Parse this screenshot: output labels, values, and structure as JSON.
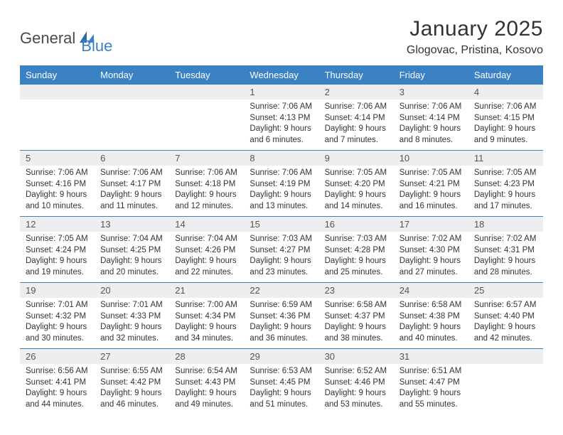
{
  "logo": {
    "part1": "General",
    "part2": "Blue"
  },
  "title": "January 2025",
  "location": "Glogovac, Pristina, Kosovo",
  "colors": {
    "header_bg": "#3b82c4",
    "header_text": "#ffffff",
    "daynum_bg": "#eceef0",
    "row_divider": "#3b82c4",
    "body_text": "#333333",
    "logo_gray": "#4a4a4a",
    "logo_blue": "#3b82c4"
  },
  "weekdays": [
    "Sunday",
    "Monday",
    "Tuesday",
    "Wednesday",
    "Thursday",
    "Friday",
    "Saturday"
  ],
  "weeks": [
    [
      null,
      null,
      null,
      {
        "n": "1",
        "sr": "7:06 AM",
        "ss": "4:13 PM",
        "dl": "9 hours and 6 minutes."
      },
      {
        "n": "2",
        "sr": "7:06 AM",
        "ss": "4:14 PM",
        "dl": "9 hours and 7 minutes."
      },
      {
        "n": "3",
        "sr": "7:06 AM",
        "ss": "4:14 PM",
        "dl": "9 hours and 8 minutes."
      },
      {
        "n": "4",
        "sr": "7:06 AM",
        "ss": "4:15 PM",
        "dl": "9 hours and 9 minutes."
      }
    ],
    [
      {
        "n": "5",
        "sr": "7:06 AM",
        "ss": "4:16 PM",
        "dl": "9 hours and 10 minutes."
      },
      {
        "n": "6",
        "sr": "7:06 AM",
        "ss": "4:17 PM",
        "dl": "9 hours and 11 minutes."
      },
      {
        "n": "7",
        "sr": "7:06 AM",
        "ss": "4:18 PM",
        "dl": "9 hours and 12 minutes."
      },
      {
        "n": "8",
        "sr": "7:06 AM",
        "ss": "4:19 PM",
        "dl": "9 hours and 13 minutes."
      },
      {
        "n": "9",
        "sr": "7:05 AM",
        "ss": "4:20 PM",
        "dl": "9 hours and 14 minutes."
      },
      {
        "n": "10",
        "sr": "7:05 AM",
        "ss": "4:21 PM",
        "dl": "9 hours and 16 minutes."
      },
      {
        "n": "11",
        "sr": "7:05 AM",
        "ss": "4:23 PM",
        "dl": "9 hours and 17 minutes."
      }
    ],
    [
      {
        "n": "12",
        "sr": "7:05 AM",
        "ss": "4:24 PM",
        "dl": "9 hours and 19 minutes."
      },
      {
        "n": "13",
        "sr": "7:04 AM",
        "ss": "4:25 PM",
        "dl": "9 hours and 20 minutes."
      },
      {
        "n": "14",
        "sr": "7:04 AM",
        "ss": "4:26 PM",
        "dl": "9 hours and 22 minutes."
      },
      {
        "n": "15",
        "sr": "7:03 AM",
        "ss": "4:27 PM",
        "dl": "9 hours and 23 minutes."
      },
      {
        "n": "16",
        "sr": "7:03 AM",
        "ss": "4:28 PM",
        "dl": "9 hours and 25 minutes."
      },
      {
        "n": "17",
        "sr": "7:02 AM",
        "ss": "4:30 PM",
        "dl": "9 hours and 27 minutes."
      },
      {
        "n": "18",
        "sr": "7:02 AM",
        "ss": "4:31 PM",
        "dl": "9 hours and 28 minutes."
      }
    ],
    [
      {
        "n": "19",
        "sr": "7:01 AM",
        "ss": "4:32 PM",
        "dl": "9 hours and 30 minutes."
      },
      {
        "n": "20",
        "sr": "7:01 AM",
        "ss": "4:33 PM",
        "dl": "9 hours and 32 minutes."
      },
      {
        "n": "21",
        "sr": "7:00 AM",
        "ss": "4:34 PM",
        "dl": "9 hours and 34 minutes."
      },
      {
        "n": "22",
        "sr": "6:59 AM",
        "ss": "4:36 PM",
        "dl": "9 hours and 36 minutes."
      },
      {
        "n": "23",
        "sr": "6:58 AM",
        "ss": "4:37 PM",
        "dl": "9 hours and 38 minutes."
      },
      {
        "n": "24",
        "sr": "6:58 AM",
        "ss": "4:38 PM",
        "dl": "9 hours and 40 minutes."
      },
      {
        "n": "25",
        "sr": "6:57 AM",
        "ss": "4:40 PM",
        "dl": "9 hours and 42 minutes."
      }
    ],
    [
      {
        "n": "26",
        "sr": "6:56 AM",
        "ss": "4:41 PM",
        "dl": "9 hours and 44 minutes."
      },
      {
        "n": "27",
        "sr": "6:55 AM",
        "ss": "4:42 PM",
        "dl": "9 hours and 46 minutes."
      },
      {
        "n": "28",
        "sr": "6:54 AM",
        "ss": "4:43 PM",
        "dl": "9 hours and 49 minutes."
      },
      {
        "n": "29",
        "sr": "6:53 AM",
        "ss": "4:45 PM",
        "dl": "9 hours and 51 minutes."
      },
      {
        "n": "30",
        "sr": "6:52 AM",
        "ss": "4:46 PM",
        "dl": "9 hours and 53 minutes."
      },
      {
        "n": "31",
        "sr": "6:51 AM",
        "ss": "4:47 PM",
        "dl": "9 hours and 55 minutes."
      },
      null
    ]
  ],
  "labels": {
    "sunrise": "Sunrise:",
    "sunset": "Sunset:",
    "daylight": "Daylight:"
  }
}
